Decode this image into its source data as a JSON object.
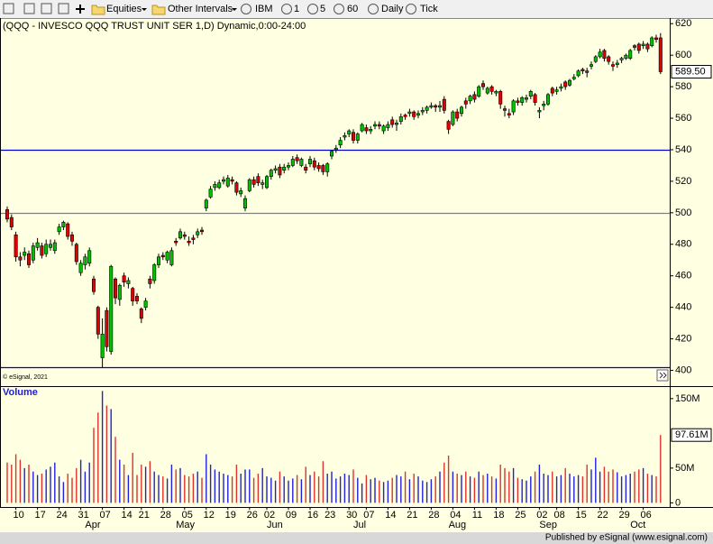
{
  "toolbar": {
    "symbol_type": "Equities",
    "intervals": "Other Intervals",
    "symbol": "IBM",
    "buttons": [
      "1",
      "5",
      "60",
      "Daily",
      "Tick"
    ]
  },
  "chart_data": {
    "type": "candlestick",
    "title": "(QQQ - INVESCO QQQ TRUST UNIT SER 1,D) Dynamic,0:00-24:00",
    "copyright": "© eSignal, 2021",
    "ylim": [
      390,
      623
    ],
    "yticks": [
      400,
      420,
      440,
      460,
      480,
      500,
      520,
      540,
      560,
      580,
      600,
      620
    ],
    "up_color": "#00c000",
    "down_color": "#e00000",
    "hlines": [
      {
        "value": 540,
        "color": "#0000cc"
      },
      {
        "value": 500,
        "color": "#808080"
      },
      {
        "value": 402,
        "color": "#0000cc"
      }
    ],
    "last_label": "589.50",
    "categories": [
      null,
      null,
      "10",
      null,
      null,
      null,
      null,
      "17",
      null,
      null,
      null,
      null,
      "24",
      null,
      null,
      null,
      null,
      "31",
      null,
      null,
      null,
      null,
      "07",
      null,
      null,
      null,
      null,
      "14",
      null,
      null,
      null,
      "21",
      null,
      null,
      null,
      null,
      "28",
      null,
      null,
      null,
      null,
      "05",
      null,
      null,
      null,
      null,
      "12",
      null,
      null,
      null,
      null,
      "19",
      null,
      null,
      null,
      null,
      "26",
      null,
      null,
      null,
      "02",
      null,
      null,
      null,
      null,
      "09",
      null,
      null,
      null,
      null,
      "16",
      null,
      null,
      null,
      "23",
      null,
      null,
      null,
      null,
      "30",
      null,
      null,
      null,
      "07",
      null,
      null,
      null,
      null,
      "14",
      null,
      null,
      null,
      null,
      "21",
      null,
      null,
      null,
      null,
      "28",
      null,
      null,
      null,
      null,
      "04",
      null,
      null,
      null,
      null,
      "11",
      null,
      null,
      null,
      null,
      "18",
      null,
      null,
      null,
      null,
      "25",
      null,
      null,
      null,
      null,
      "02",
      null,
      null,
      null,
      "08",
      null,
      null,
      null,
      null,
      "15",
      null,
      null,
      null,
      null,
      "22",
      null,
      null,
      null,
      null,
      "29",
      null,
      null,
      null,
      null,
      "06",
      null,
      null,
      null,
      null
    ],
    "months": [
      null,
      null,
      null,
      null,
      null,
      null,
      null,
      null,
      null,
      null,
      null,
      null,
      null,
      null,
      null,
      null,
      null,
      null,
      "Apr",
      null,
      null,
      null,
      null,
      null,
      null,
      null,
      null,
      null,
      null,
      null,
      null,
      null,
      null,
      null,
      null,
      null,
      null,
      null,
      null,
      "May",
      null,
      null,
      null,
      null,
      null,
      null,
      null,
      null,
      null,
      null,
      null,
      null,
      null,
      null,
      null,
      null,
      null,
      null,
      null,
      null,
      "Jun",
      null,
      null,
      null,
      null,
      null,
      null,
      null,
      null,
      null,
      null,
      null,
      null,
      null,
      null,
      null,
      null,
      null,
      null,
      null,
      "Jul",
      null,
      null,
      null,
      null,
      null,
      null,
      null,
      null,
      null,
      null,
      null,
      null,
      null,
      null,
      null,
      null,
      null,
      null,
      null,
      null,
      null,
      "Aug",
      null,
      null,
      null,
      null,
      null,
      null,
      null,
      null,
      null,
      null,
      null,
      null,
      null,
      null,
      null,
      null,
      null,
      null,
      null,
      null,
      "Sep",
      null,
      null,
      null,
      null,
      null,
      null,
      null,
      null,
      null,
      null,
      null,
      null,
      null,
      null,
      null,
      null,
      null,
      null,
      null,
      null,
      "Oct",
      null,
      null,
      null,
      null,
      null,
      null,
      null
    ],
    "open": [
      502,
      497,
      486,
      472,
      473,
      474,
      470,
      478,
      479,
      474,
      478,
      476,
      488,
      491,
      493,
      486,
      480,
      462,
      467,
      468,
      458,
      440,
      408,
      438,
      412,
      458,
      445,
      460,
      455,
      452,
      447,
      439,
      440,
      458,
      457,
      467,
      473,
      470,
      467,
      482,
      484,
      486,
      482,
      484,
      486,
      489,
      503,
      510,
      516,
      516,
      520,
      517,
      521,
      519,
      512,
      503,
      514,
      521,
      523,
      518,
      516,
      523,
      527,
      529,
      527,
      529,
      530,
      535,
      530,
      529,
      531,
      533,
      530,
      530,
      526,
      536,
      540,
      543,
      548,
      550,
      551,
      546,
      552,
      554,
      552,
      555,
      556,
      552,
      554,
      559,
      556,
      558,
      562,
      563,
      564,
      562,
      564,
      565,
      567,
      568,
      567,
      572,
      558,
      556,
      564,
      563,
      571,
      571,
      575,
      574,
      582,
      576,
      580,
      576,
      577,
      566,
      563,
      564,
      571,
      570,
      572,
      574,
      575,
      564,
      568,
      569,
      579,
      577,
      579,
      583,
      581,
      585,
      587,
      591,
      590,
      593,
      596,
      599,
      603,
      599,
      594,
      594,
      597,
      598,
      598,
      606,
      607,
      606,
      607,
      606,
      611,
      611
    ],
    "high": [
      504,
      499,
      488,
      475,
      478,
      476,
      481,
      484,
      481,
      483,
      483,
      483,
      493,
      495,
      494,
      488,
      481,
      470,
      474,
      478,
      460,
      441,
      433,
      440,
      467,
      459,
      455,
      462,
      459,
      453,
      449,
      440,
      446,
      460,
      468,
      474,
      475,
      476,
      478,
      484,
      490,
      488,
      485,
      486,
      490,
      491,
      509,
      517,
      520,
      521,
      523,
      524,
      523,
      520,
      516,
      511,
      522,
      523,
      525,
      521,
      524,
      528,
      530,
      531,
      531,
      532,
      536,
      537,
      535,
      531,
      536,
      535,
      532,
      531,
      532,
      540,
      543,
      548,
      551,
      553,
      553,
      551,
      557,
      556,
      555,
      558,
      558,
      556,
      558,
      561,
      559,
      563,
      563,
      566,
      565,
      565,
      567,
      568,
      570,
      569,
      571,
      574,
      559,
      565,
      566,
      568,
      573,
      575,
      577,
      581,
      584,
      580,
      581,
      578,
      578,
      568,
      566,
      572,
      573,
      574,
      575,
      578,
      576,
      567,
      571,
      576,
      580,
      580,
      582,
      584,
      585,
      588,
      591,
      592,
      592,
      596,
      600,
      604,
      604,
      600,
      596,
      597,
      599,
      601,
      604,
      607,
      608,
      609,
      608,
      612,
      613,
      614
    ],
    "low": [
      494,
      489,
      469,
      466,
      470,
      465,
      468,
      476,
      471,
      472,
      476,
      474,
      486,
      489,
      483,
      479,
      467,
      460,
      464,
      466,
      448,
      420,
      402,
      412,
      410,
      442,
      441,
      453,
      452,
      441,
      442,
      430,
      438,
      452,
      455,
      465,
      470,
      468,
      466,
      479,
      483,
      483,
      479,
      480,
      484,
      486,
      501,
      509,
      514,
      515,
      518,
      516,
      518,
      511,
      510,
      501,
      513,
      516,
      517,
      515,
      515,
      521,
      525,
      522,
      525,
      527,
      529,
      531,
      529,
      525,
      529,
      527,
      526,
      524,
      523,
      534,
      538,
      541,
      546,
      548,
      544,
      544,
      551,
      550,
      550,
      553,
      553,
      550,
      552,
      554,
      552,
      556,
      559,
      561,
      559,
      560,
      562,
      563,
      566,
      564,
      564,
      563,
      550,
      555,
      558,
      561,
      566,
      569,
      570,
      573,
      578,
      575,
      575,
      574,
      566,
      561,
      560,
      562,
      568,
      568,
      570,
      572,
      568,
      560,
      565,
      568,
      574,
      575,
      577,
      578,
      580,
      584,
      586,
      588,
      586,
      591,
      595,
      598,
      596,
      594,
      590,
      592,
      595,
      597,
      597,
      603,
      601,
      604,
      602,
      605,
      608,
      588
    ],
    "close": [
      496,
      491,
      472,
      470,
      475,
      467,
      479,
      481,
      473,
      480,
      480,
      481,
      491,
      494,
      485,
      482,
      469,
      468,
      472,
      476,
      450,
      423,
      423,
      415,
      466,
      446,
      454,
      456,
      457,
      444,
      444,
      433,
      444,
      455,
      467,
      472,
      472,
      475,
      476,
      481,
      488,
      485,
      481,
      483,
      488,
      488,
      508,
      515,
      518,
      519,
      521,
      522,
      520,
      513,
      514,
      509,
      521,
      518,
      519,
      519,
      523,
      527,
      528,
      524,
      529,
      530,
      534,
      533,
      534,
      527,
      534,
      529,
      528,
      526,
      531,
      539,
      541,
      546,
      549,
      552,
      546,
      550,
      556,
      552,
      553,
      556,
      555,
      555,
      556,
      556,
      557,
      561,
      561,
      564,
      561,
      563,
      565,
      567,
      568,
      567,
      568,
      565,
      553,
      564,
      560,
      567,
      569,
      574,
      572,
      580,
      580,
      579,
      577,
      577,
      569,
      565,
      562,
      571,
      570,
      573,
      573,
      577,
      570,
      565,
      569,
      575,
      576,
      578,
      580,
      580,
      584,
      586,
      590,
      590,
      589,
      594,
      599,
      602,
      598,
      596,
      593,
      595,
      598,
      600,
      603,
      605,
      603,
      607,
      604,
      611,
      610,
      589.5
    ],
    "volume": {
      "title": "Volume",
      "ylim": [
        -6,
        168
      ],
      "yticks": [
        0,
        {
          "value": 50,
          "label": "50M"
        },
        {
          "value": 150,
          "label": "150M"
        }
      ],
      "last_label": "97.61M",
      "up_color": "#2020e0",
      "down_color": "#e03030",
      "values": [
        58,
        55,
        70,
        62,
        50,
        55,
        45,
        40,
        42,
        48,
        52,
        58,
        38,
        30,
        42,
        36,
        50,
        62,
        45,
        58,
        108,
        130,
        161,
        140,
        135,
        95,
        62,
        55,
        40,
        72,
        40,
        55,
        52,
        60,
        45,
        40,
        38,
        35,
        55,
        48,
        50,
        40,
        38,
        42,
        45,
        36,
        70,
        55,
        48,
        45,
        42,
        40,
        38,
        55,
        42,
        48,
        48,
        36,
        42,
        50,
        38,
        36,
        32,
        45,
        38,
        32,
        35,
        40,
        34,
        52,
        40,
        45,
        38,
        60,
        42,
        45,
        35,
        38,
        42,
        40,
        48,
        36,
        28,
        40,
        34,
        36,
        32,
        30,
        32,
        36,
        40,
        38,
        45,
        34,
        42,
        38,
        32,
        30,
        34,
        38,
        45,
        58,
        68,
        45,
        42,
        40,
        45,
        38,
        36,
        45,
        40,
        42,
        38,
        35,
        55,
        50,
        45,
        50,
        36,
        34,
        32,
        38,
        45,
        55,
        42,
        40,
        45,
        38,
        40,
        50,
        42,
        38,
        40,
        38,
        55,
        48,
        65,
        45,
        52,
        45,
        48,
        44,
        38,
        40,
        42,
        45,
        48,
        50,
        42,
        40,
        38,
        97.61
      ]
    }
  },
  "footer": "Published by eSignal (www.esignal.com)"
}
